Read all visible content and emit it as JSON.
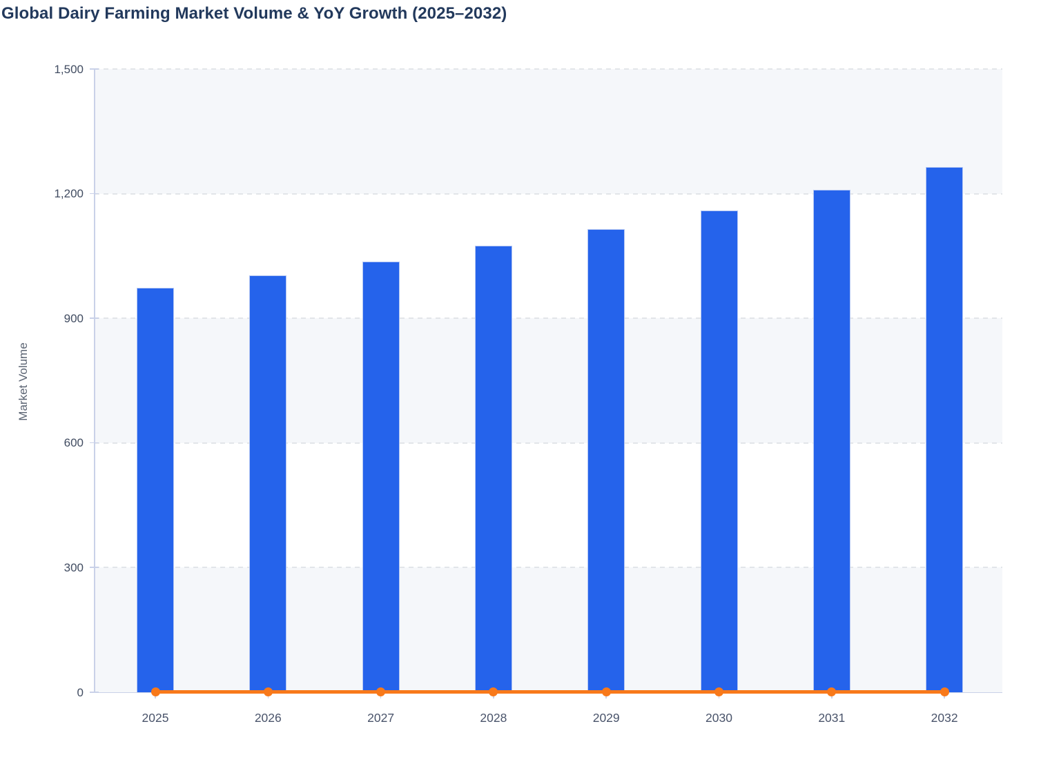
{
  "title": "Global Dairy Farming Market Volume & YoY Growth (2025–2032)",
  "y_axis": {
    "label": "Market Volume",
    "tick_labels": [
      "1,500",
      "1,200",
      "900",
      "600",
      "300",
      "0"
    ],
    "tick_values": [
      1500,
      1200,
      900,
      600,
      300,
      0
    ]
  },
  "x_axis": {
    "tick_labels": [
      "2025",
      "2026",
      "2027",
      "2028",
      "2029",
      "2030",
      "2031",
      "2032"
    ]
  },
  "colors": {
    "bar_fill": "#2563eb",
    "bar_edge": "#b3c6f3",
    "line": "#f8791a",
    "band_fill": "#f5f7fa",
    "gridline": "#e2e5e9",
    "axis_line": "#c9d1e8",
    "title_text": "#22395c",
    "y_tick_text": "#414c61",
    "x_tick_text": "#49536a",
    "axis_label_text": "#5a6372"
  },
  "chart_data": {
    "type": "bar",
    "title": "Global Dairy Farming Market Volume & YoY Growth (2025–2032)",
    "categories": [
      "2025",
      "2026",
      "2027",
      "2028",
      "2029",
      "2030",
      "2031",
      "2032"
    ],
    "series": [
      {
        "name": "Market Volume",
        "type": "bar",
        "color": "#2563eb",
        "values": [
          973,
          1003,
          1036,
          1074,
          1114,
          1160,
          1209,
          1264
        ]
      },
      {
        "name": "YoY Growth",
        "type": "line",
        "color": "#f8791a",
        "values": [
          3.0,
          3.1,
          3.3,
          3.6,
          3.8,
          4.1,
          4.3,
          4.5
        ],
        "axis_note": "plotted on the shared 0–1500 axis, so the line renders flat along the zero baseline with a round marker at each year"
      }
    ],
    "xlabel": "",
    "ylabel": "Market Volume",
    "ylim": [
      0,
      1500
    ],
    "yticks": [
      0,
      300,
      600,
      900,
      1200,
      1500
    ],
    "grid": "horizontal dashed gridlines at each y tick",
    "plot_bands": "alternating horizontal fill bands between gridlines (light grey / white), starting grey at top",
    "legend_position": "none"
  }
}
